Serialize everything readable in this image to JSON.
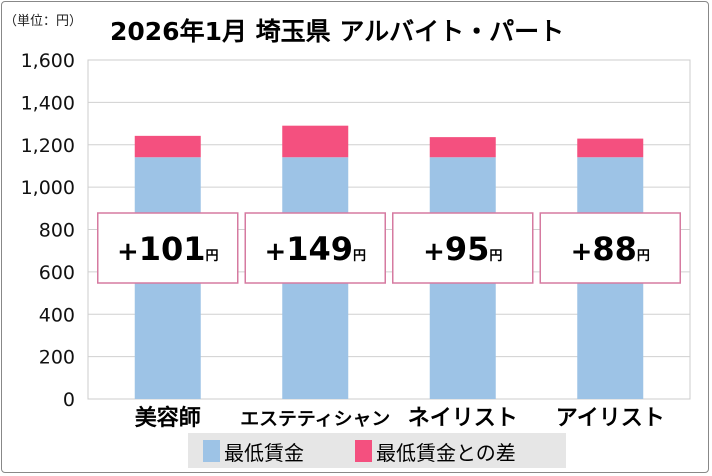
{
  "chart_data": {
    "type": "bar",
    "stacked": true,
    "title": "2026年1月 埼玉県 アルバイト・パート",
    "unit_label": "（単位：円）",
    "categories": [
      "美容師",
      "エステティシャン",
      "ネイリスト",
      "アイリスト"
    ],
    "series": [
      {
        "name": "最低賃金",
        "values": [
          1141,
          1141,
          1141,
          1141
        ],
        "color": "#9dc3e6"
      },
      {
        "name": "最低賃金との差",
        "values": [
          101,
          149,
          95,
          88
        ],
        "color": "#f4507f"
      }
    ],
    "data_labels": [
      {
        "sign": "+",
        "value": "101",
        "unit": "円"
      },
      {
        "sign": "+",
        "value": "149",
        "unit": "円"
      },
      {
        "sign": "+",
        "value": "95",
        "unit": "円"
      },
      {
        "sign": "+",
        "value": "88",
        "unit": "円"
      }
    ],
    "ylim": [
      0,
      1600
    ],
    "yticks": [
      "0",
      "200",
      "400",
      "600",
      "800",
      "1,000",
      "1,200",
      "1,400",
      "1,600"
    ],
    "grid": true,
    "legend_position": "bottom"
  }
}
